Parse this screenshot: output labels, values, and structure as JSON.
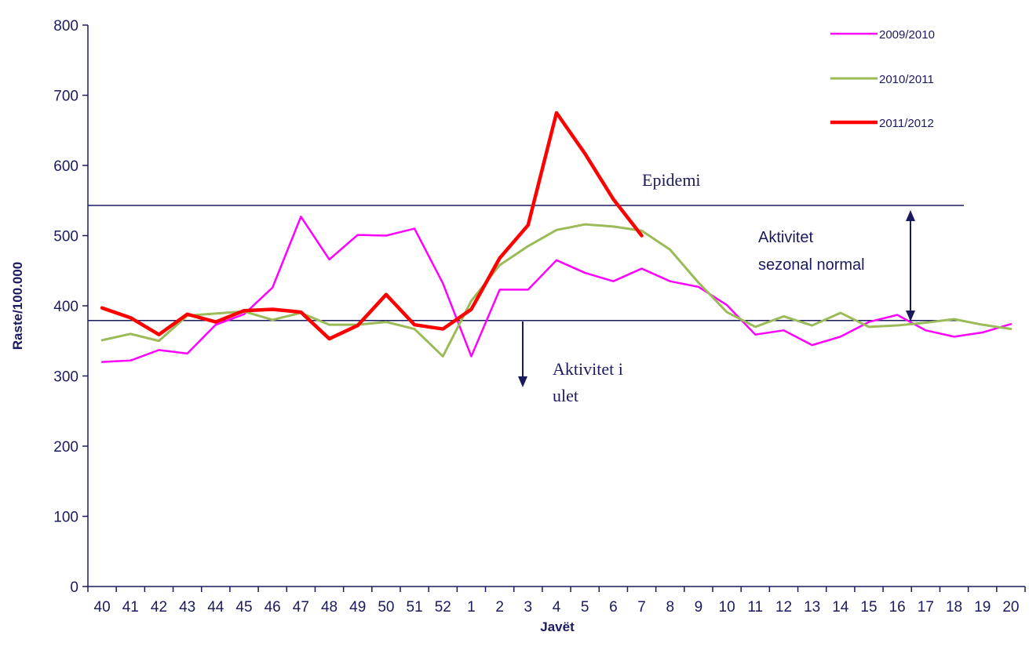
{
  "chart_data": {
    "type": "line",
    "title": "",
    "xlabel": "Javët",
    "ylabel": "Raste/100.000",
    "ylim": [
      0,
      800
    ],
    "yticks": [
      0,
      100,
      200,
      300,
      400,
      500,
      600,
      700,
      800
    ],
    "grid": false,
    "legend_position": "top-right",
    "categories": [
      "40",
      "41",
      "42",
      "43",
      "44",
      "45",
      "46",
      "47",
      "48",
      "49",
      "50",
      "51",
      "52",
      "1",
      "2",
      "3",
      "4",
      "5",
      "6",
      "7",
      "8",
      "9",
      "10",
      "11",
      "12",
      "13",
      "14",
      "15",
      "16",
      "17",
      "18",
      "19",
      "20"
    ],
    "series": [
      {
        "name": "2009/2010",
        "color": "#ff00ff",
        "values": [
          320,
          322,
          337,
          332,
          373,
          388,
          426,
          527,
          466,
          501,
          500,
          510,
          432,
          328,
          423,
          423,
          465,
          447,
          435,
          453,
          435,
          427,
          401,
          359,
          365,
          344,
          356,
          377,
          387,
          365,
          356,
          362,
          374
        ]
      },
      {
        "name": "2010/2011",
        "color": "#9bbb59",
        "values": [
          351,
          360,
          350,
          386,
          389,
          392,
          380,
          390,
          373,
          373,
          377,
          367,
          328,
          407,
          458,
          485,
          508,
          516,
          513,
          507,
          480,
          433,
          391,
          370,
          385,
          372,
          390,
          370,
          372,
          376,
          381,
          373,
          367
        ]
      },
      {
        "name": "2011/2012",
        "color": "#ff0000",
        "values": [
          397,
          383,
          359,
          388,
          377,
          393,
          395,
          391,
          353,
          372,
          416,
          373,
          367,
          395,
          468,
          515,
          675,
          617,
          552,
          500,
          null,
          null,
          null,
          null,
          null,
          null,
          null,
          null,
          null,
          null,
          null,
          null,
          null
        ]
      }
    ],
    "reference_lines": [
      {
        "value": 543,
        "color": "#1a1a5e"
      },
      {
        "value": 379,
        "color": "#1a1a5e"
      }
    ],
    "annotations": {
      "epidemic": "Epidemi",
      "normal_line1": "Aktivitet",
      "normal_line2": "sezonal normal",
      "low_line1": "Aktivitet i",
      "low_line2": "ulet"
    }
  }
}
